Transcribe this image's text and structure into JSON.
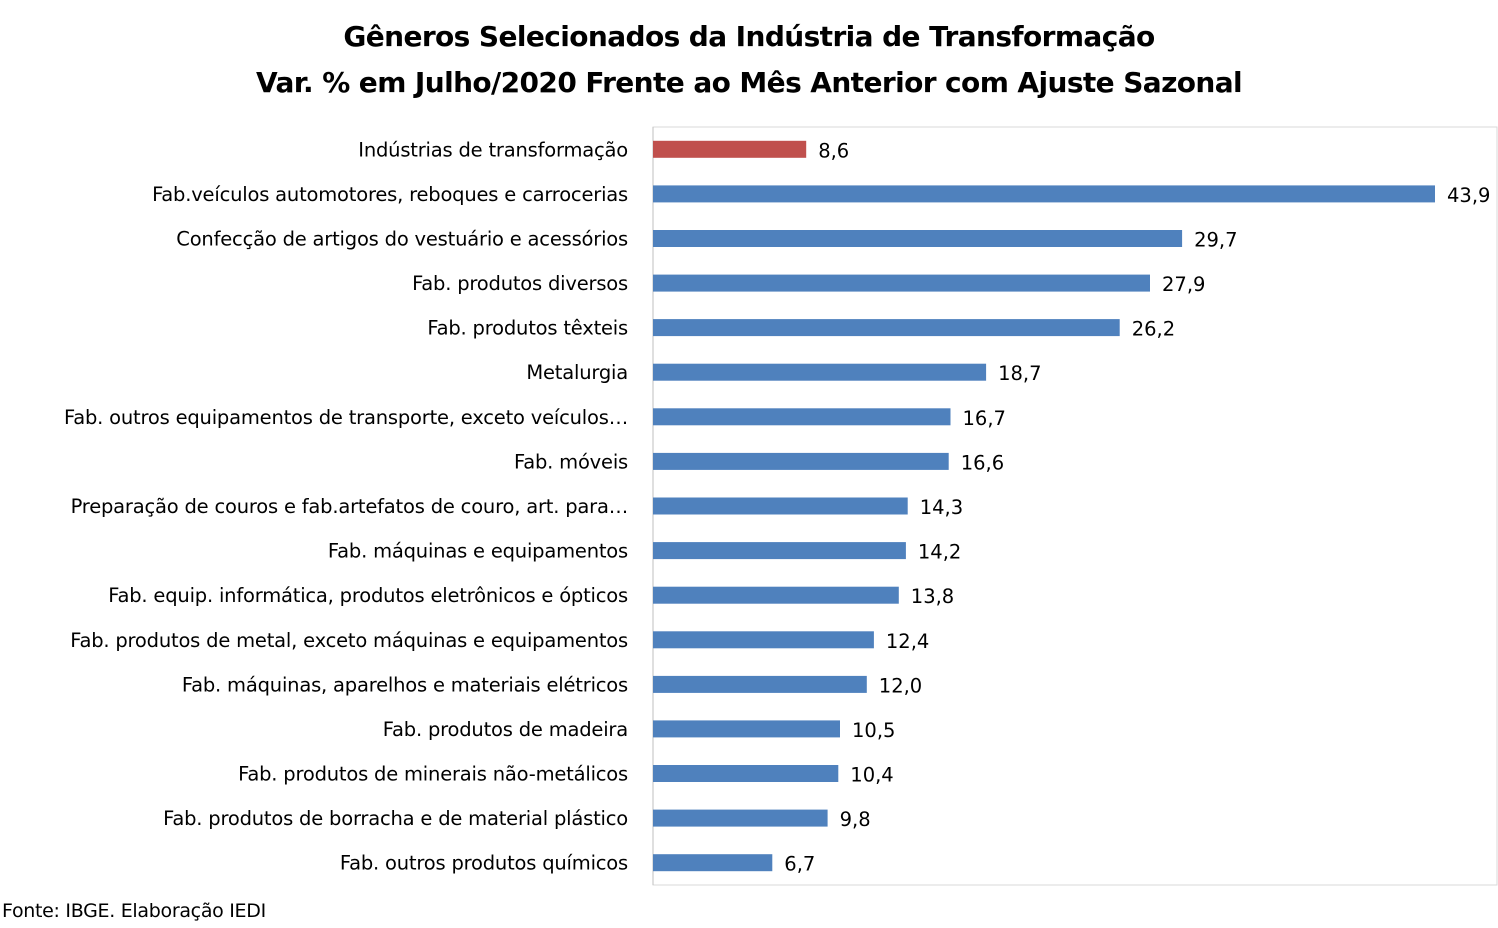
{
  "chart_data": {
    "type": "bar",
    "orientation": "horizontal",
    "title": "Gêneros Selecionados da Indústria de Transformação",
    "subtitle": "Var. % em Julho/2020 Frente ao Mês Anterior com Ajuste Sazonal",
    "xlim": [
      0,
      50
    ],
    "grid": false,
    "categories": [
      "Indústrias de transformação",
      "Fab.veículos automotores, reboques e carrocerias",
      "Confecção de artigos do vestuário e acessórios",
      "Fab. produtos diversos",
      "Fab. produtos têxteis",
      "Metalurgia",
      "Fab. outros equipamentos de transporte, exceto veículos…",
      "Fab. móveis",
      "Preparação de couros e fab.artefatos de couro, art. para…",
      "Fab. máquinas e equipamentos",
      "Fab. equip. informática, produtos eletrônicos e ópticos",
      "Fab. produtos de metal, exceto máquinas e equipamentos",
      "Fab. máquinas, aparelhos e materiais elétricos",
      "Fab. produtos de madeira",
      "Fab. produtos de minerais não-metálicos",
      "Fab. produtos de borracha e de material plástico",
      "Fab. outros produtos químicos"
    ],
    "values": [
      8.6,
      43.9,
      29.7,
      27.9,
      26.2,
      18.7,
      16.7,
      16.6,
      14.3,
      14.2,
      13.8,
      12.4,
      12.0,
      10.5,
      10.4,
      9.8,
      6.7
    ],
    "value_labels": [
      "8,6",
      "43,9",
      "29,7",
      "27,9",
      "26,2",
      "18,7",
      "16,7",
      "16,6",
      "14,3",
      "14,2",
      "13,8",
      "12,4",
      "12,0",
      "10,5",
      "10,4",
      "9,8",
      "6,7"
    ],
    "colors": {
      "highlight": "#C0504D",
      "default": "#4F81BD"
    },
    "highlight_index": 0
  },
  "source": "Fonte: IBGE. Elaboração IEDI"
}
